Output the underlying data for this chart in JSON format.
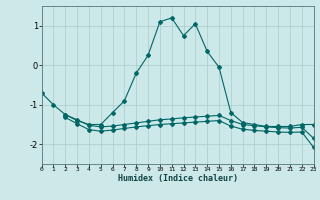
{
  "xlabel": "Humidex (Indice chaleur)",
  "bg_color": "#cce8e8",
  "grid_color": "#aacccc",
  "line_color": "#006666",
  "line1_x": [
    0,
    1,
    2,
    3,
    4,
    5,
    6,
    7,
    8,
    9,
    10,
    11,
    12,
    13,
    14,
    15,
    16,
    17,
    18,
    19,
    20,
    21,
    22,
    23
  ],
  "line1_y": [
    -0.7,
    -1.0,
    -1.25,
    -1.4,
    -1.5,
    -1.5,
    -1.2,
    -0.9,
    -0.2,
    0.25,
    1.1,
    1.2,
    0.75,
    1.05,
    0.35,
    -0.05,
    -1.2,
    -1.45,
    -1.5,
    -1.55,
    -1.55,
    -1.55,
    -1.5,
    -1.5
  ],
  "line2_x": [
    2,
    3,
    4,
    5,
    6,
    7,
    8,
    9,
    10,
    11,
    12,
    13,
    14,
    15,
    16,
    17,
    18,
    19,
    20,
    21,
    22,
    23
  ],
  "line2_y": [
    -1.25,
    -1.38,
    -1.52,
    -1.56,
    -1.54,
    -1.5,
    -1.46,
    -1.42,
    -1.38,
    -1.36,
    -1.33,
    -1.31,
    -1.29,
    -1.27,
    -1.4,
    -1.5,
    -1.53,
    -1.56,
    -1.58,
    -1.59,
    -1.57,
    -1.85
  ],
  "line3_x": [
    2,
    3,
    4,
    5,
    6,
    7,
    8,
    9,
    10,
    11,
    12,
    13,
    14,
    15,
    16,
    17,
    18,
    19,
    20,
    21,
    22,
    23
  ],
  "line3_y": [
    -1.32,
    -1.48,
    -1.63,
    -1.67,
    -1.64,
    -1.6,
    -1.56,
    -1.53,
    -1.5,
    -1.48,
    -1.46,
    -1.44,
    -1.42,
    -1.4,
    -1.54,
    -1.62,
    -1.65,
    -1.67,
    -1.69,
    -1.7,
    -1.69,
    -2.08
  ],
  "xlim": [
    0,
    23
  ],
  "ylim": [
    -2.5,
    1.5
  ],
  "yticks": [
    -2,
    -1,
    0,
    1
  ],
  "xticks": [
    0,
    1,
    2,
    3,
    4,
    5,
    6,
    7,
    8,
    9,
    10,
    11,
    12,
    13,
    14,
    15,
    16,
    17,
    18,
    19,
    20,
    21,
    22,
    23
  ],
  "xtick_labels": [
    "0",
    "1",
    "2",
    "3",
    "4",
    "5",
    "6",
    "7",
    "8",
    "9",
    "10",
    "11",
    "12",
    "13",
    "14",
    "15",
    "16",
    "17",
    "18",
    "19",
    "20",
    "21",
    "22",
    "23"
  ]
}
